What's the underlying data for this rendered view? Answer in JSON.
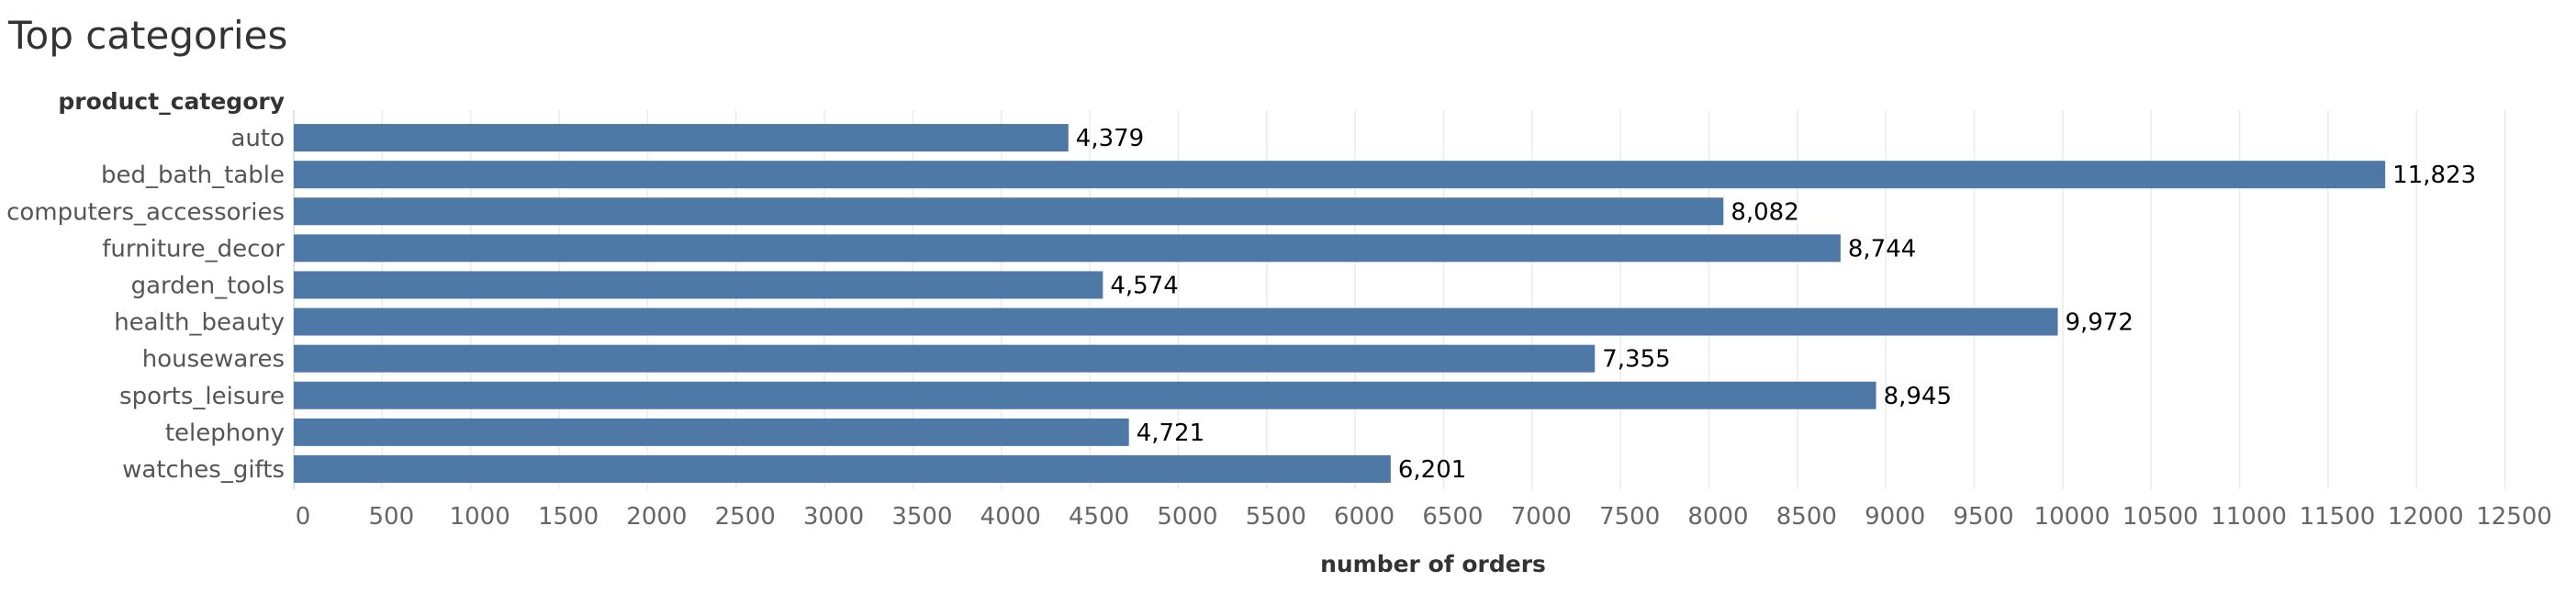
{
  "title": "Top categories",
  "chart_data": {
    "type": "bar",
    "orientation": "horizontal",
    "title": "Top categories",
    "category_header": "product_category",
    "xlabel": "number of orders",
    "ylabel": "",
    "categories": [
      "auto",
      "bed_bath_table",
      "computers_accessories",
      "furniture_decor",
      "garden_tools",
      "health_beauty",
      "housewares",
      "sports_leisure",
      "telephony",
      "watches_gifts"
    ],
    "values": [
      4379,
      11823,
      8082,
      8744,
      4574,
      9972,
      7355,
      8945,
      4721,
      6201
    ],
    "value_labels": [
      "4,379",
      "11,823",
      "8,082",
      "8,744",
      "4,574",
      "9,972",
      "7,355",
      "8,945",
      "4,721",
      "6,201"
    ],
    "xlim": [
      0,
      12900
    ],
    "xticks": [
      0,
      500,
      1000,
      1500,
      2000,
      2500,
      3000,
      3500,
      4000,
      4500,
      5000,
      5500,
      6000,
      6500,
      7000,
      7500,
      8000,
      8500,
      9000,
      9500,
      10000,
      10500,
      11000,
      11500,
      12000,
      12500
    ],
    "bar_color": "#4e79a7",
    "grid": true
  }
}
